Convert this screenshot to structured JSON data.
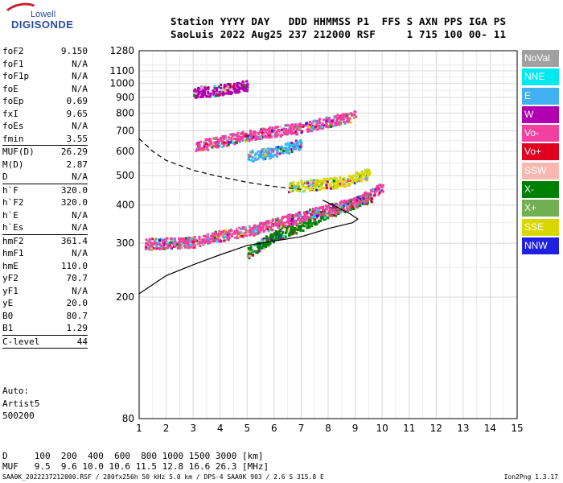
{
  "logo": {
    "line1": "Lowell",
    "line2": "DIGISONDE"
  },
  "header": {
    "row1": "Station YYYY DAY   DDD HHMMSS P1  FFS S AXN PPS IGA PS",
    "row2": "SaoLuis 2022 Aug25 237 212000 RSF     1 715 100 00- 11"
  },
  "params": [
    {
      "label": "foF2",
      "value": "9.150"
    },
    {
      "label": "foF1",
      "value": "N/A"
    },
    {
      "label": "foF1p",
      "value": "N/A"
    },
    {
      "label": "foE",
      "value": "N/A"
    },
    {
      "label": "foEp",
      "value": "0.69"
    },
    {
      "label": "fxI",
      "value": "9.65"
    },
    {
      "label": "foEs",
      "value": "N/A"
    },
    {
      "label": "fmin",
      "value": "3.55"
    },
    {
      "label": "MUF(D)",
      "value": "26.29",
      "sep": true
    },
    {
      "label": "M(D)",
      "value": "2.87"
    },
    {
      "label": "D",
      "value": "N/A"
    },
    {
      "label": "h`F",
      "value": "320.0",
      "sep": true
    },
    {
      "label": "h`F2",
      "value": "320.0"
    },
    {
      "label": "h`E",
      "value": "N/A"
    },
    {
      "label": "h`Es",
      "value": "N/A"
    },
    {
      "label": "hmF2",
      "value": "361.4",
      "sep": true
    },
    {
      "label": "hmF1",
      "value": "N/A"
    },
    {
      "label": "hmE",
      "value": "110.0"
    },
    {
      "label": "yF2",
      "value": "70.7"
    },
    {
      "label": "yF1",
      "value": "N/A"
    },
    {
      "label": "yE",
      "value": "20.0"
    },
    {
      "label": "B0",
      "value": "80.7"
    },
    {
      "label": "B1",
      "value": "1.29"
    },
    {
      "label": "C-level",
      "value": "44",
      "sep": true
    }
  ],
  "misc": {
    "auto": "Auto:",
    "artist": "Artist5",
    "code": "500200"
  },
  "legend": [
    {
      "label": "NoVal",
      "color": "#a0a0a0"
    },
    {
      "label": "NNE",
      "color": "#00e8f0"
    },
    {
      "label": "E",
      "color": "#40b0f0"
    },
    {
      "label": "W",
      "color": "#b000b0"
    },
    {
      "label": "Vo-",
      "color": "#f040a0"
    },
    {
      "label": "Vo+",
      "color": "#e00020"
    },
    {
      "label": "SSW",
      "color": "#f8b8b0"
    },
    {
      "label": "X-",
      "color": "#008000"
    },
    {
      "label": "X+",
      "color": "#70b050"
    },
    {
      "label": "SSE",
      "color": "#d8d800"
    },
    {
      "label": "NNW",
      "color": "#2020e0"
    }
  ],
  "muf_table": {
    "d_row": "D     100  200  400  600  800 1000 1500 3000 [km]",
    "muf_row": "MUF   9.5  9.6 10.0 10.6 11.5 12.8 16.6 26.3 [MHz]"
  },
  "footer": "SAA0K_2022237212000.RSF / 280fx256h 50 kHz 5.0 km / DPS-4 SAA0K 903 / 2.6 S 315.8 E",
  "version": "Ion2Png 1.3.17",
  "chart_data": {
    "type": "scatter",
    "title": "",
    "xlabel": "",
    "ylabel": "",
    "xlim": [
      1,
      15
    ],
    "ylim": [
      80,
      1280
    ],
    "y_scale": "log",
    "xticks": [
      1,
      2,
      3,
      4,
      5,
      6,
      7,
      8,
      9,
      10,
      11,
      12,
      13,
      14,
      15
    ],
    "yticks": [
      80,
      200,
      300,
      400,
      500,
      600,
      700,
      800,
      900,
      1000,
      1100,
      1280
    ],
    "grid": true,
    "legend_position": "right",
    "series": [
      {
        "color_key": "X-",
        "band": [
          [
            5.0,
            280
          ],
          [
            6.0,
            320
          ],
          [
            7.0,
            345
          ],
          [
            8.0,
            380
          ],
          [
            9.0,
            410
          ],
          [
            9.6,
            430
          ]
        ]
      },
      {
        "color_key": "Vo-",
        "band": [
          [
            1.2,
            300
          ],
          [
            3.0,
            305
          ],
          [
            4.0,
            320
          ],
          [
            5.0,
            330
          ],
          [
            6.0,
            350
          ],
          [
            7.0,
            370
          ],
          [
            8.0,
            390
          ],
          [
            9.0,
            410
          ],
          [
            10.0,
            460
          ]
        ]
      },
      {
        "color_key": "Vo-",
        "band": [
          [
            3.0,
            625
          ],
          [
            4.0,
            650
          ],
          [
            5.0,
            680
          ],
          [
            6.0,
            700
          ],
          [
            7.0,
            720
          ],
          [
            8.0,
            755
          ],
          [
            9.0,
            790
          ]
        ]
      },
      {
        "color_key": "W",
        "band": [
          [
            3.0,
            940
          ],
          [
            4.0,
            960
          ],
          [
            5.0,
            990
          ]
        ]
      },
      {
        "color_key": "E",
        "band": [
          [
            5.0,
            580
          ],
          [
            6.0,
            600
          ],
          [
            7.0,
            640
          ]
        ]
      },
      {
        "color_key": "SSE",
        "band": [
          [
            6.5,
            460
          ],
          [
            7.5,
            470
          ],
          [
            8.5,
            480
          ],
          [
            9.5,
            510
          ]
        ]
      }
    ],
    "profile_solid": [
      [
        1.0,
        205
      ],
      [
        2.0,
        235
      ],
      [
        3.0,
        255
      ],
      [
        4.0,
        275
      ],
      [
        5.0,
        295
      ],
      [
        6.0,
        305
      ],
      [
        7.0,
        315
      ],
      [
        8.0,
        335
      ],
      [
        8.9,
        350
      ],
      [
        9.1,
        360
      ],
      [
        8.8,
        375
      ],
      [
        8.3,
        395
      ],
      [
        7.8,
        415
      ]
    ],
    "profile_dashed": [
      [
        1.0,
        660
      ],
      [
        1.5,
        600
      ],
      [
        2.0,
        560
      ],
      [
        3.0,
        520
      ],
      [
        4.0,
        495
      ],
      [
        5.0,
        475
      ],
      [
        6.0,
        460
      ],
      [
        7.0,
        450
      ]
    ]
  }
}
